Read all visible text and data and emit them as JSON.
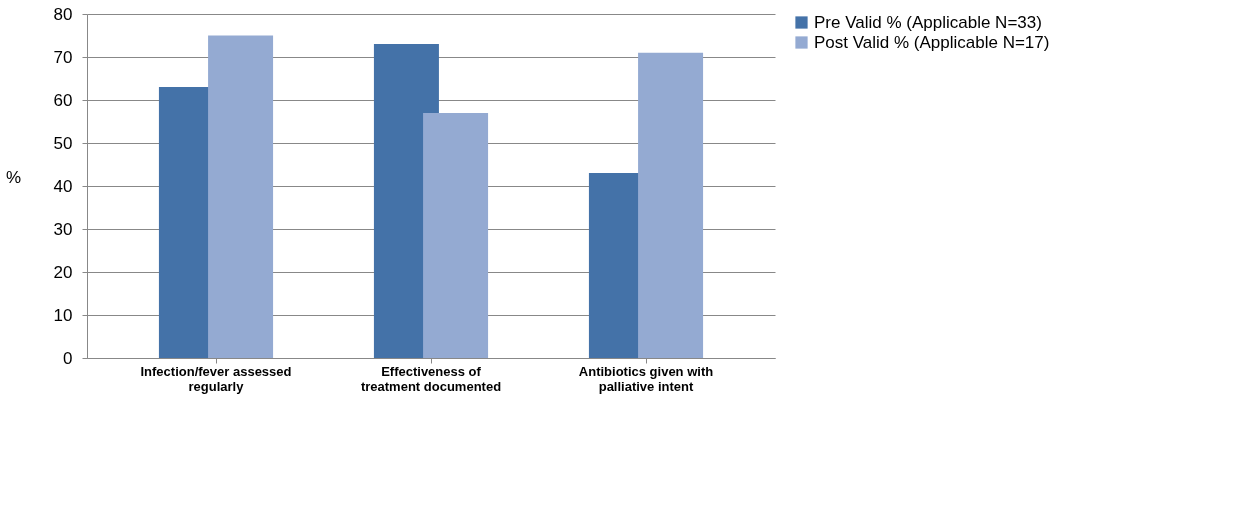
{
  "chart_data": {
    "type": "bar",
    "ylabel": "%",
    "categories": [
      "Infection/fever assessed regularly",
      "Effectiveness of treatment documented",
      "Antibiotics given with palliative intent"
    ],
    "series": [
      {
        "name": "Pre Valid % (Applicable N=33)",
        "color": "#4472a8",
        "values": [
          63,
          73,
          43
        ]
      },
      {
        "name": "Post Valid % (Applicable N=17)",
        "color": "#94aad2",
        "values": [
          75,
          57,
          71
        ]
      }
    ],
    "ylim": [
      0,
      80
    ],
    "yticks": [
      0,
      10,
      20,
      30,
      40,
      50,
      60,
      70,
      80
    ],
    "grid": "y",
    "legend": "right"
  }
}
